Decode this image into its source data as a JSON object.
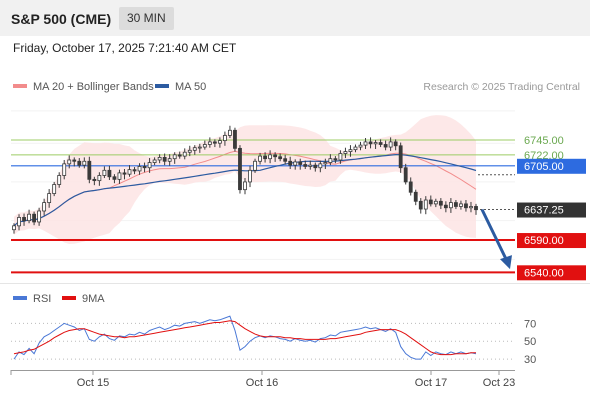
{
  "header": {
    "title": "S&P 500 (CME)",
    "timeframe": "30 MIN",
    "datetime": "Friday, October 17, 2025 7:21:40 AM CET"
  },
  "colors": {
    "bollinger": "#f28c8c",
    "bollinger_fill": "#fde4e4",
    "ma50": "#2c5ba1",
    "resistance_line": "#9ccc65",
    "resistance_text": "#6aa84f",
    "pivot": "#2d6be0",
    "support": "#e11010",
    "current": "#333333",
    "rsi": "#4a78d6",
    "rsi_ma": "#e11010",
    "arrow": "#2c5ba1",
    "candle": "#3a3a3a"
  },
  "chart_data": [
    {
      "type": "candlestick",
      "legend": [
        {
          "name": "MA 20 + Bollinger Bands",
          "color": "#f28c8c"
        },
        {
          "name": "MA 50",
          "color": "#2c5ba1"
        }
      ],
      "legend_placement": "top-left",
      "source": "Research © 2025 Trading Central",
      "x_ticks": [
        "Oct 15",
        "Oct 16",
        "Oct 17",
        "Oct 23"
      ],
      "ylim": [
        6525,
        6810
      ],
      "levels": [
        {
          "label": "6745.00",
          "value": 6745,
          "kind": "resistance"
        },
        {
          "label": "6722.00",
          "value": 6722,
          "kind": "resistance"
        },
        {
          "label": "6705.00",
          "value": 6705,
          "kind": "pivot"
        },
        {
          "label": "6637.25",
          "value": 6637.25,
          "kind": "current"
        },
        {
          "label": "6590.00",
          "value": 6590,
          "kind": "support"
        },
        {
          "label": "6540.00",
          "value": 6540,
          "kind": "support"
        }
      ],
      "forecast": {
        "from": 6637.25,
        "to": 6545
      },
      "close": [
        6612,
        6625,
        6620,
        6630,
        6618,
        6635,
        6648,
        6662,
        6676,
        6690,
        6708,
        6714,
        6712,
        6706,
        6712,
        6684,
        6682,
        6690,
        6698,
        6688,
        6684,
        6694,
        6692,
        6699,
        6697,
        6704,
        6702,
        6710,
        6714,
        6718,
        6712,
        6716,
        6722,
        6720,
        6726,
        6729,
        6733,
        6734,
        6738,
        6742,
        6740,
        6744,
        6752,
        6760,
        6732,
        6668,
        6680,
        6698,
        6712,
        6720,
        6716,
        6722,
        6719,
        6716,
        6712,
        6706,
        6711,
        6707,
        6704,
        6706,
        6702,
        6708,
        6710,
        6716,
        6714,
        6724,
        6727,
        6730,
        6734,
        6737,
        6742,
        6739,
        6741,
        6738,
        6734,
        6742,
        6736,
        6702,
        6680,
        6664,
        6650,
        6638,
        6652,
        6646,
        6650,
        6644,
        6640,
        6648,
        6642,
        6646,
        6640,
        6642,
        6637
      ]
    },
    {
      "type": "line",
      "legend": [
        {
          "name": "RSI",
          "color": "#4a78d6"
        },
        {
          "name": "9MA",
          "color": "#e11010"
        }
      ],
      "y_ticks": [
        "70",
        "50",
        "30"
      ],
      "ylim": [
        20,
        85
      ],
      "rsi": [
        30,
        38,
        35,
        42,
        36,
        48,
        55,
        58,
        62,
        66,
        70,
        68,
        66,
        62,
        64,
        52,
        50,
        55,
        58,
        53,
        51,
        56,
        55,
        58,
        57,
        60,
        58,
        62,
        64,
        66,
        63,
        65,
        68,
        67,
        70,
        71,
        72,
        70,
        72,
        74,
        73,
        74,
        76,
        78,
        62,
        40,
        44,
        50,
        54,
        56,
        54,
        56,
        55,
        53,
        52,
        50,
        53,
        51,
        50,
        51,
        49,
        53,
        54,
        57,
        56,
        60,
        61,
        62,
        63,
        64,
        66,
        64,
        65,
        63,
        61,
        64,
        60,
        44,
        36,
        32,
        30,
        30,
        38,
        34,
        38,
        36,
        35,
        38,
        36,
        38,
        36,
        37,
        36
      ],
      "ma": [
        36,
        37,
        38,
        40,
        41,
        44,
        47,
        50,
        54,
        57,
        60,
        62,
        63,
        64,
        64,
        62,
        60,
        58,
        57,
        56,
        55,
        55,
        54,
        55,
        55,
        56,
        57,
        58,
        59,
        60,
        61,
        62,
        63,
        64,
        65,
        66,
        67,
        68,
        69,
        70,
        71,
        71,
        72,
        73,
        72,
        68,
        64,
        61,
        58,
        56,
        55,
        55,
        55,
        55,
        54,
        54,
        53,
        53,
        52,
        52,
        52,
        52,
        52,
        53,
        53,
        54,
        55,
        56,
        57,
        58,
        60,
        61,
        62,
        63,
        63,
        63,
        63,
        61,
        58,
        54,
        50,
        46,
        42,
        38,
        36,
        35,
        35,
        35,
        36,
        36,
        36,
        37,
        37
      ]
    }
  ]
}
